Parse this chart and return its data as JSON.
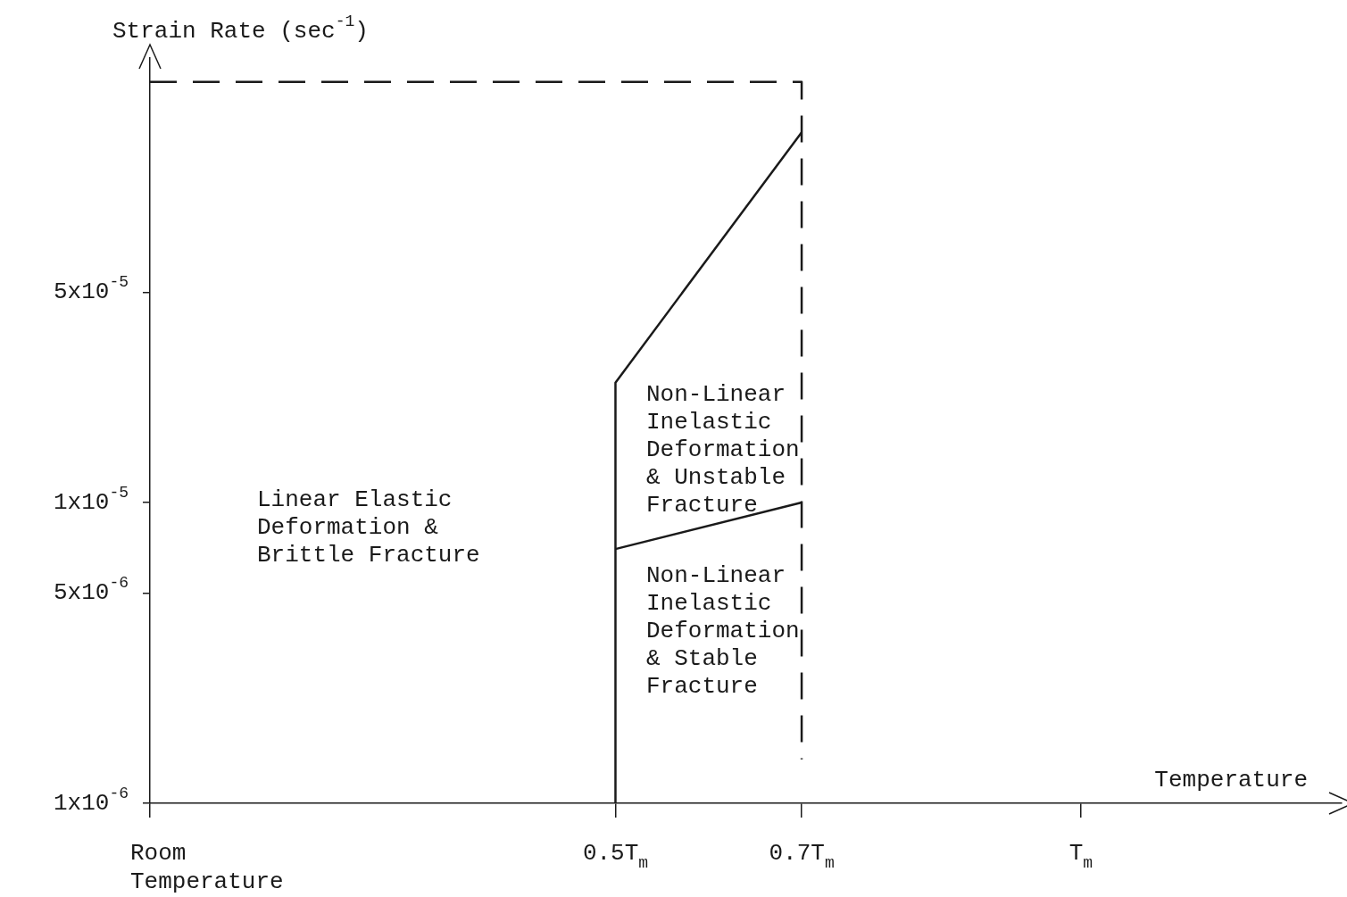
{
  "chart_data": {
    "type": "line",
    "xlabel": "Temperature",
    "ylabel": "Strain Rate (sec$^{-1}$)",
    "xlim": [
      0,
      1.28
    ],
    "ylim": [
      1e-06,
      0.0003
    ],
    "xticks": [
      {
        "value": 0,
        "label": "Room\nTemperature"
      },
      {
        "value": 0.5,
        "label": "0.5T$_{m}$"
      },
      {
        "value": 0.7,
        "label": "0.7T$_{m}$"
      },
      {
        "value": 1,
        "label": "T$_{m}$"
      }
    ],
    "yticks": [
      {
        "value": 1e-06,
        "label": "1x10$^{-6}$"
      },
      {
        "value": 5e-06,
        "label": "5x10$^{-6}$"
      },
      {
        "value": 1e-05,
        "label": "1x10$^{-5}$"
      },
      {
        "value": 5e-05,
        "label": "5x10$^{-5}$"
      }
    ],
    "grid": false,
    "log": "y",
    "legend": false,
    "marker": "none",
    "series": [
      {
        "color": "#1a1a1a",
        "line_style": "solid",
        "x": [
          0.5,
          0.5,
          0.7
        ],
        "values": [
          1e-06,
          2.5e-05,
          0.00017
        ]
      },
      {
        "color": "#1a1a1a",
        "line_style": "solid",
        "x": [
          0.5,
          0.7
        ],
        "values": [
          7e-06,
          1e-05
        ]
      },
      {
        "color": "#1a1a1a",
        "line_style": "dashed",
        "x": [
          0,
          0.7,
          0.7
        ],
        "values": [
          0.00025,
          0.00025,
          1.4e-06
        ]
      }
    ],
    "annotations": [
      "Linear Elastic\nDeformation &\nBrittle Fracture",
      "Non-Linear\nInelastic\nDeformation\n& Unstable\nFracture",
      "Non-Linear\nInelastic\nDeformation\n& Stable\nFracture"
    ]
  }
}
